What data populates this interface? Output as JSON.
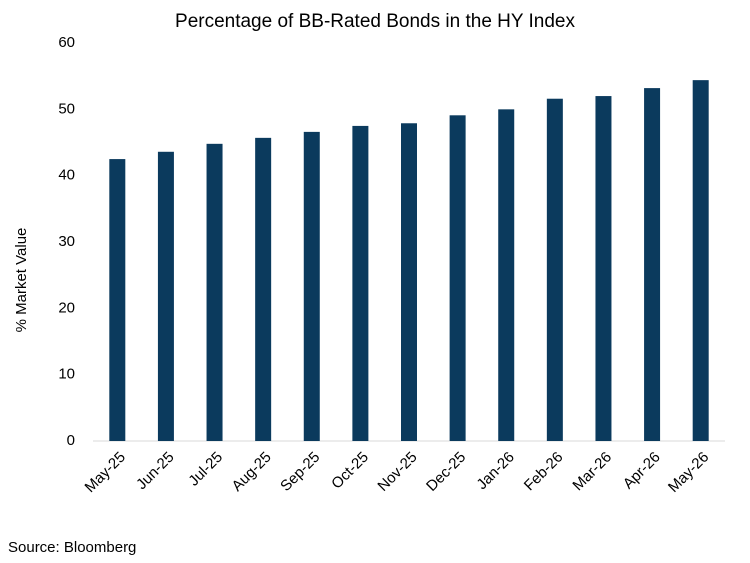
{
  "chart_data": {
    "type": "bar",
    "title": "Percentage of BB-Rated Bonds in the HY Index",
    "y_label": "% Market Value",
    "source": "Source: Bloomberg",
    "categories": [
      "May-25",
      "Jun-25",
      "Jul-25",
      "Aug-25",
      "Sep-25",
      "Oct-25",
      "Nov-25",
      "Dec-25",
      "Jan-26",
      "Feb-26",
      "Mar-26",
      "Apr-26",
      "May-26"
    ],
    "values": [
      42.5,
      43.6,
      44.8,
      45.7,
      46.6,
      47.5,
      47.9,
      49.1,
      50.0,
      51.6,
      52.0,
      53.2,
      54.4
    ],
    "color": "#0b3a5d",
    "ylim": [
      0,
      60
    ],
    "yticks": [
      0,
      10,
      20,
      30,
      40,
      50,
      60
    ],
    "grid": false
  }
}
